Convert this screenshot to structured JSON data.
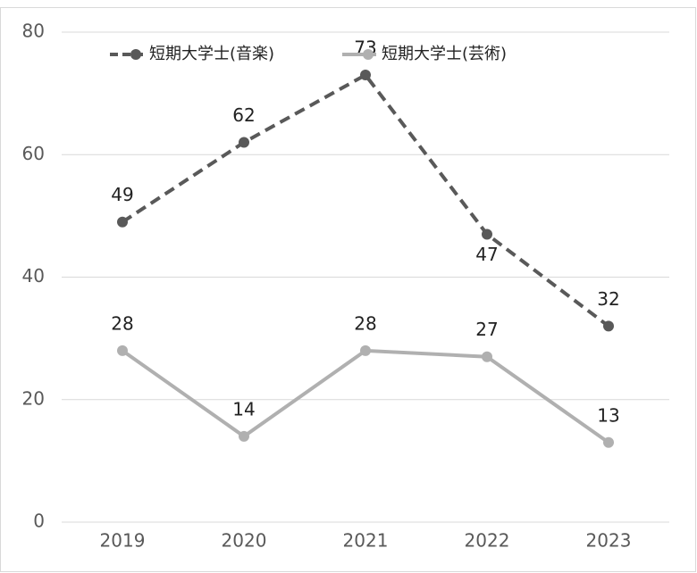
{
  "chart_data": {
    "type": "line",
    "categories": [
      "2019",
      "2020",
      "2021",
      "2022",
      "2023"
    ],
    "series": [
      {
        "name": "短期大学士(音楽)",
        "color": "#595959",
        "line_style": "dashed",
        "values": [
          49,
          62,
          73,
          47,
          32
        ]
      },
      {
        "name": "短期大学士(芸術)",
        "color": "#b0b0b0",
        "line_style": "solid",
        "values": [
          28,
          14,
          28,
          27,
          13
        ]
      }
    ],
    "ylim": [
      0,
      80
    ],
    "yticks": [
      0,
      20,
      40,
      60,
      80
    ],
    "grid": true,
    "legend": "top"
  }
}
